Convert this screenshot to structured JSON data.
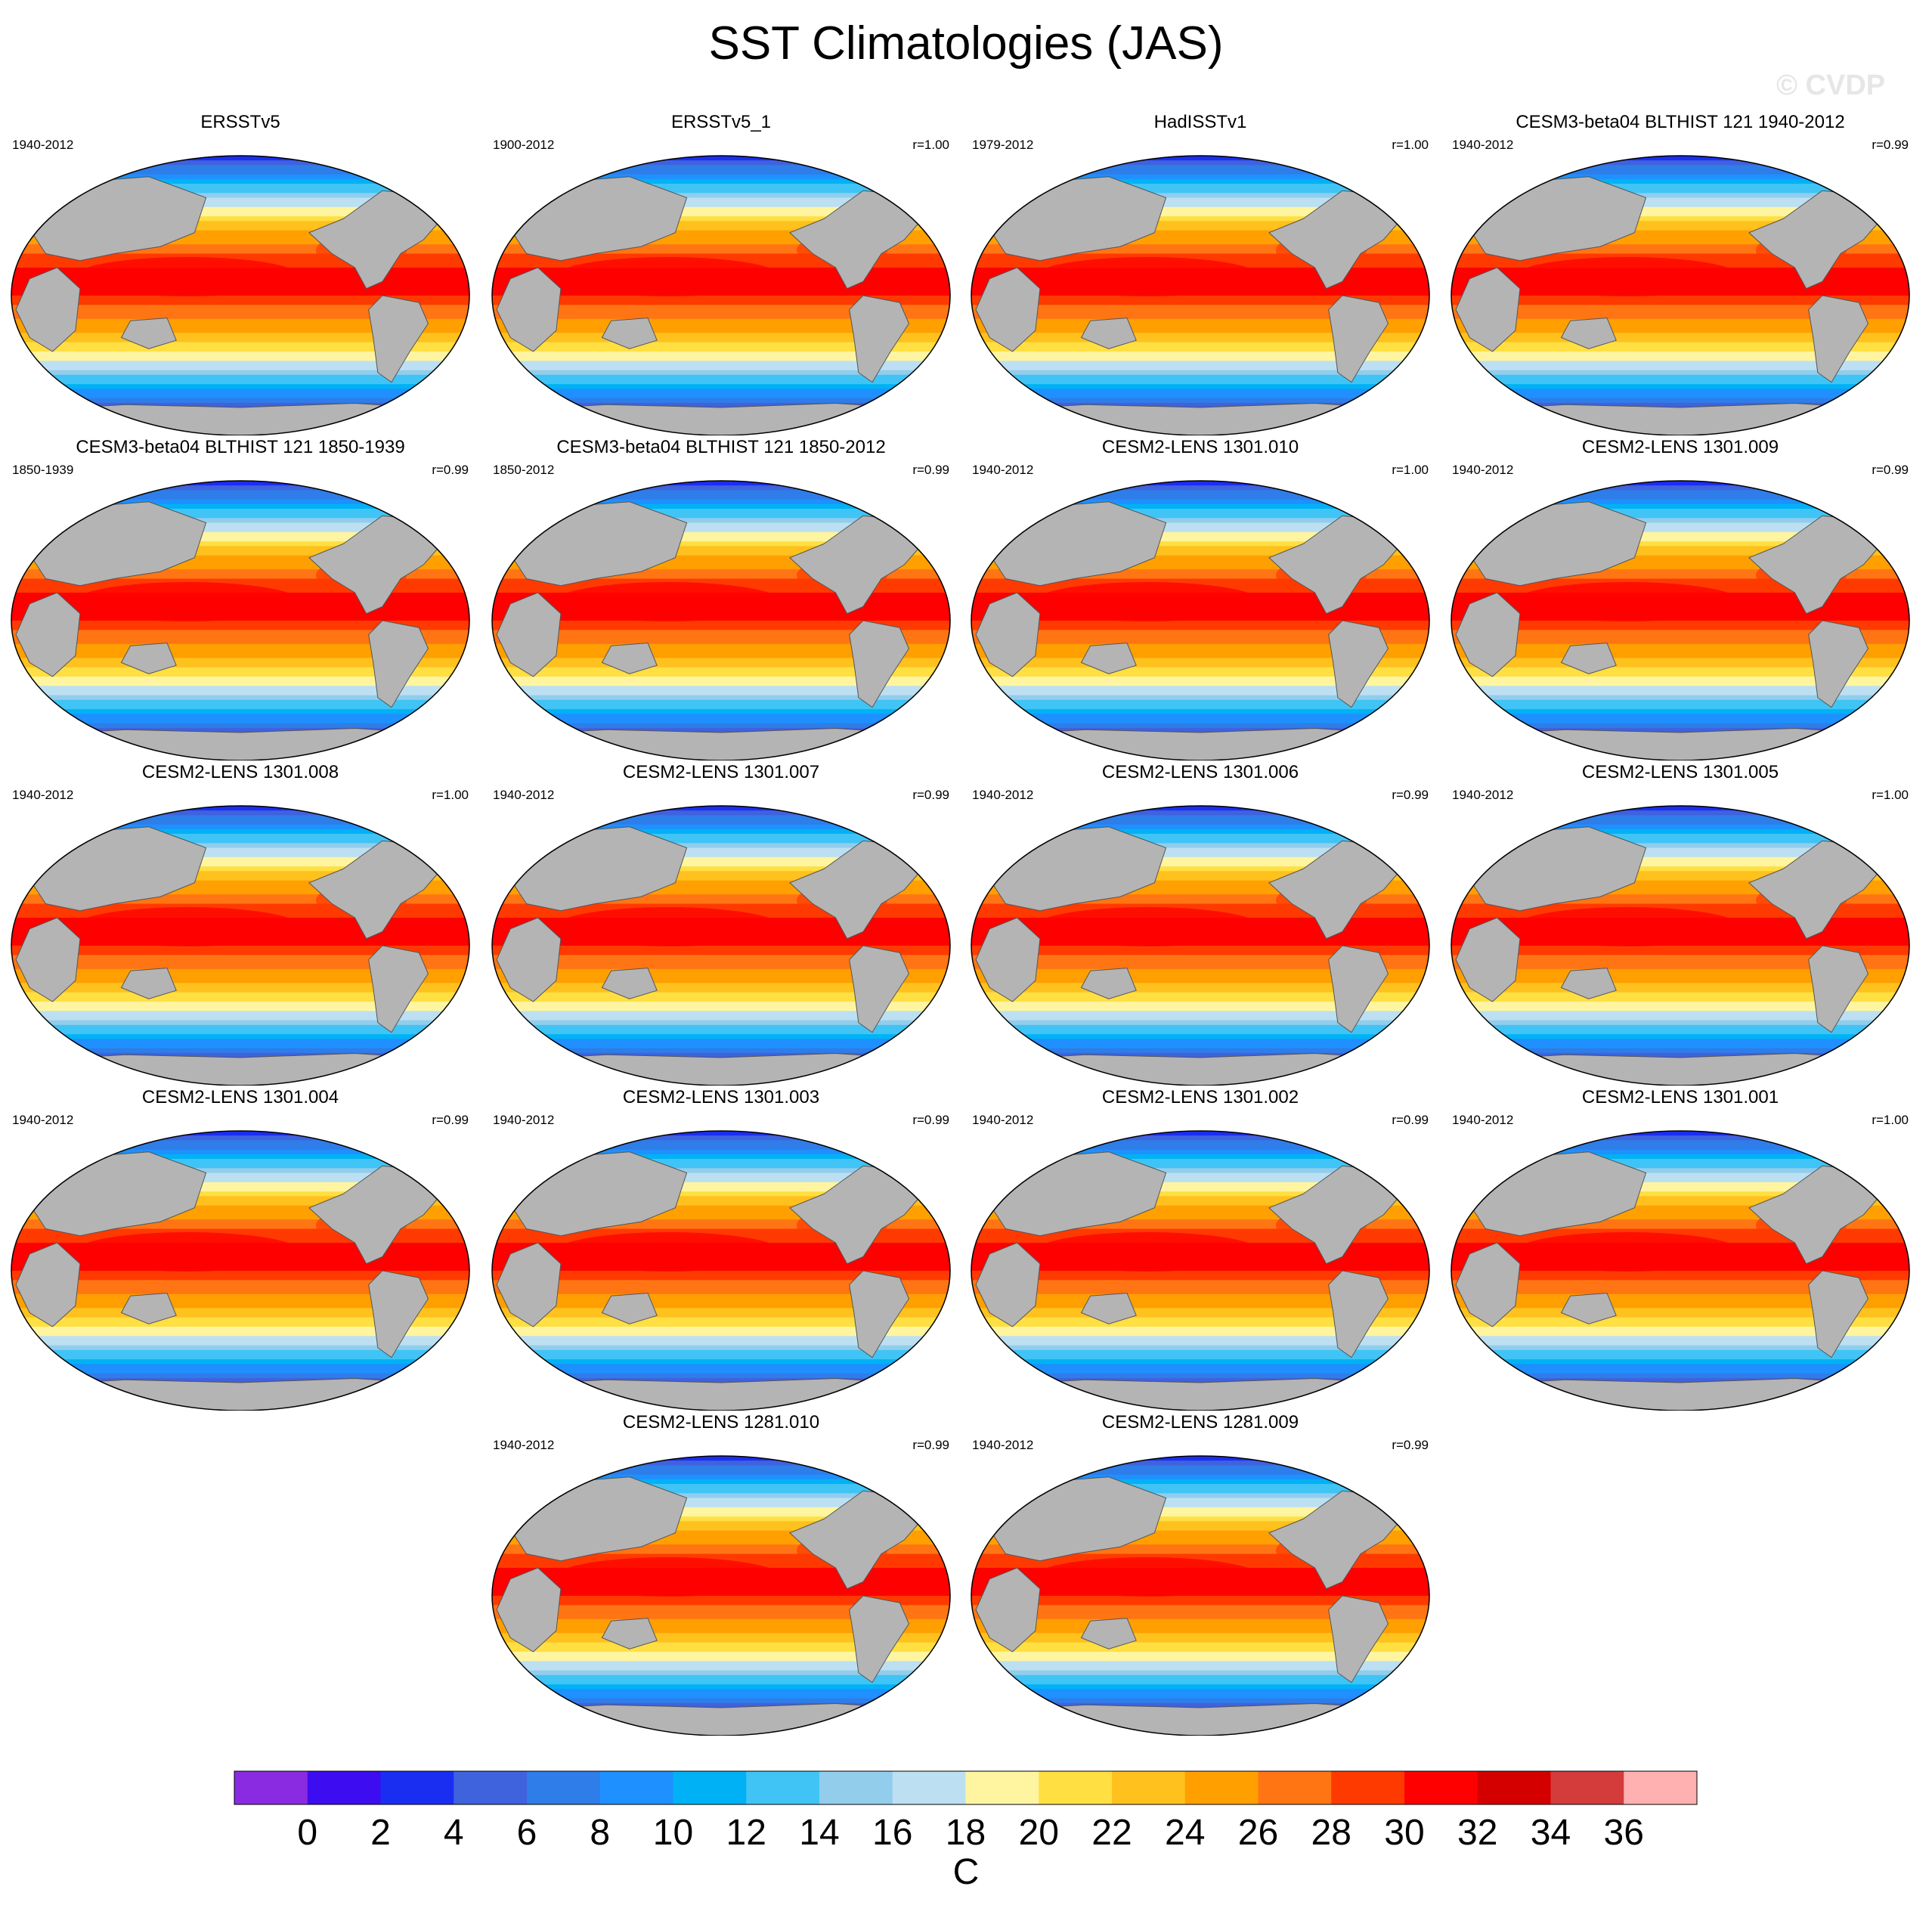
{
  "title": "SST Climatologies (JAS)",
  "watermark": "© CVDP",
  "panels": [
    {
      "title": "ERSSTv5",
      "period": "1940-2012",
      "corr": ""
    },
    {
      "title": "ERSSTv5_1",
      "period": "1900-2012",
      "corr": "r=1.00"
    },
    {
      "title": "HadISSTv1",
      "period": "1979-2012",
      "corr": "r=1.00"
    },
    {
      "title": "CESM3-beta04 BLTHIST 121 1940-2012",
      "period": "1940-2012",
      "corr": "r=0.99"
    },
    {
      "title": "CESM3-beta04 BLTHIST 121 1850-1939",
      "period": "1850-1939",
      "corr": "r=0.99"
    },
    {
      "title": "CESM3-beta04 BLTHIST 121 1850-2012",
      "period": "1850-2012",
      "corr": "r=0.99"
    },
    {
      "title": "CESM2-LENS 1301.010",
      "period": "1940-2012",
      "corr": "r=1.00"
    },
    {
      "title": "CESM2-LENS 1301.009",
      "period": "1940-2012",
      "corr": "r=0.99"
    },
    {
      "title": "CESM2-LENS 1301.008",
      "period": "1940-2012",
      "corr": "r=1.00"
    },
    {
      "title": "CESM2-LENS 1301.007",
      "period": "1940-2012",
      "corr": "r=0.99"
    },
    {
      "title": "CESM2-LENS 1301.006",
      "period": "1940-2012",
      "corr": "r=0.99"
    },
    {
      "title": "CESM2-LENS 1301.005",
      "period": "1940-2012",
      "corr": "r=1.00"
    },
    {
      "title": "CESM2-LENS 1301.004",
      "period": "1940-2012",
      "corr": "r=0.99"
    },
    {
      "title": "CESM2-LENS 1301.003",
      "period": "1940-2012",
      "corr": "r=0.99"
    },
    {
      "title": "CESM2-LENS 1301.002",
      "period": "1940-2012",
      "corr": "r=0.99"
    },
    {
      "title": "CESM2-LENS 1301.001",
      "period": "1940-2012",
      "corr": "r=1.00"
    },
    {
      "title": "CESM2-LENS 1281.010",
      "period": "1940-2012",
      "corr": "r=0.99"
    },
    {
      "title": "CESM2-LENS 1281.009",
      "period": "1940-2012",
      "corr": "r=0.99"
    }
  ],
  "colorbar": {
    "colors": [
      "#8a2be2",
      "#3d0cf0",
      "#1a2ef2",
      "#3f62dd",
      "#2f7de8",
      "#1e90ff",
      "#00b2f5",
      "#40c4f5",
      "#92cdec",
      "#bce0f2",
      "#fff5a0",
      "#ffdf42",
      "#ffc11e",
      "#ff9f00",
      "#ff7514",
      "#ff3a00",
      "#ff0000",
      "#d40000",
      "#d43c3c",
      "#ffb0b0"
    ],
    "tick_labels": [
      "0",
      "2",
      "4",
      "6",
      "8",
      "10",
      "12",
      "14",
      "16",
      "18",
      "20",
      "22",
      "24",
      "26",
      "28",
      "30",
      "32",
      "34",
      "36"
    ],
    "unit_label": "C"
  }
}
